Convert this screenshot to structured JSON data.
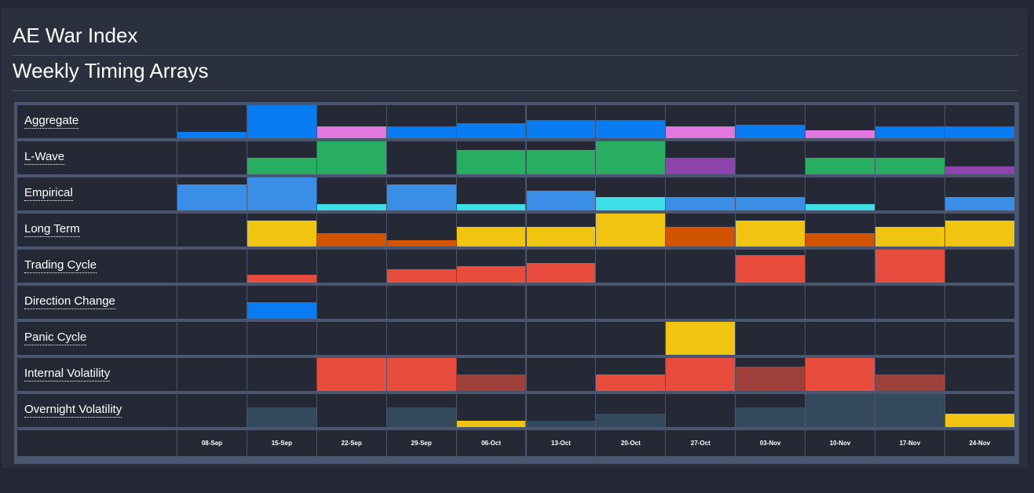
{
  "page": {
    "title": "AE War Index",
    "subtitle": "Weekly Timing Arrays"
  },
  "colors": {
    "cell_bg": "#252935",
    "border": "#4a5570",
    "panel": "#2b303e"
  },
  "chart_data": {
    "type": "heatmap",
    "categories": [
      "08-Sep",
      "15-Sep",
      "22-Sep",
      "29-Sep",
      "06-Oct",
      "13-Oct",
      "20-Oct",
      "27-Oct",
      "03-Nov",
      "10-Nov",
      "17-Nov",
      "24-Nov"
    ],
    "rows": [
      {
        "name": "Aggregate",
        "values": [
          0.2,
          1.0,
          0.35,
          0.35,
          0.45,
          0.55,
          0.55,
          0.35,
          0.4,
          0.25,
          0.35,
          0.35
        ],
        "colors": [
          "#0a7cf2",
          "#0a7cf2",
          "#e078e0",
          "#0a7cf2",
          "#0a7cf2",
          "#0a7cf2",
          "#0a7cf2",
          "#e078e0",
          "#0a7cf2",
          "#e078e0",
          "#0a7cf2",
          "#0a7cf2"
        ]
      },
      {
        "name": "L-Wave",
        "values": [
          0,
          0.5,
          1.0,
          0,
          0.75,
          0.75,
          1.0,
          0.5,
          0,
          0.5,
          0.5,
          0.25
        ],
        "colors": [
          "#27ae60",
          "#27ae60",
          "#27ae60",
          "#27ae60",
          "#27ae60",
          "#27ae60",
          "#27ae60",
          "#8e44ad",
          "#27ae60",
          "#27ae60",
          "#27ae60",
          "#8e44ad"
        ]
      },
      {
        "name": "Empirical",
        "values": [
          0.8,
          1.0,
          0.2,
          0.8,
          0.2,
          0.6,
          0.4,
          0.4,
          0.4,
          0.2,
          0,
          0.4
        ],
        "colors": [
          "#3a8ee6",
          "#3a8ee6",
          "#3ddee6",
          "#3a8ee6",
          "#3ddee6",
          "#3a8ee6",
          "#3ddee6",
          "#3a8ee6",
          "#3a8ee6",
          "#3ddee6",
          "#3a8ee6",
          "#3a8ee6"
        ]
      },
      {
        "name": "Long Term",
        "values": [
          0,
          0.8,
          0.4,
          0.2,
          0.6,
          0.6,
          1.0,
          0.6,
          0.8,
          0.4,
          0.6,
          0.8
        ],
        "colors": [
          "#f1c40f",
          "#f1c40f",
          "#d35400",
          "#d35400",
          "#f1c40f",
          "#f1c40f",
          "#f1c40f",
          "#d35400",
          "#f1c40f",
          "#d35400",
          "#f1c40f",
          "#f1c40f"
        ]
      },
      {
        "name": "Trading Cycle",
        "values": [
          0,
          0.25,
          0,
          0.4,
          0.5,
          0.6,
          0,
          0,
          0.85,
          0,
          1.0,
          0
        ],
        "colors": [
          "#e74c3c",
          "#e74c3c",
          "#e74c3c",
          "#e74c3c",
          "#e74c3c",
          "#e74c3c",
          "#e74c3c",
          "#e74c3c",
          "#e74c3c",
          "#e74c3c",
          "#e74c3c",
          "#e74c3c"
        ]
      },
      {
        "name": "Direction Change",
        "values": [
          0,
          0.5,
          0,
          0,
          0,
          0,
          0,
          0,
          0,
          0,
          0,
          0
        ],
        "colors": [
          "#0a7cf2",
          "#0a7cf2",
          "#0a7cf2",
          "#0a7cf2",
          "#0a7cf2",
          "#0a7cf2",
          "#0a7cf2",
          "#0a7cf2",
          "#0a7cf2",
          "#0a7cf2",
          "#0a7cf2",
          "#0a7cf2"
        ]
      },
      {
        "name": "Panic Cycle",
        "values": [
          0,
          0,
          0,
          0,
          0,
          0,
          0,
          1.0,
          0,
          0,
          0,
          0
        ],
        "colors": [
          "#f1c40f",
          "#f1c40f",
          "#f1c40f",
          "#f1c40f",
          "#f1c40f",
          "#f1c40f",
          "#f1c40f",
          "#f1c40f",
          "#f1c40f",
          "#f1c40f",
          "#f1c40f",
          "#f1c40f"
        ]
      },
      {
        "name": "Internal Volatility",
        "values": [
          0,
          0,
          1.0,
          1.0,
          0.5,
          0,
          0.5,
          1.0,
          0.75,
          1.0,
          0.5,
          0
        ],
        "colors": [
          "#e74c3c",
          "#e74c3c",
          "#e74c3c",
          "#e74c3c",
          "#a0403a",
          "#e74c3c",
          "#e74c3c",
          "#e74c3c",
          "#a0403a",
          "#e74c3c",
          "#a0403a",
          "#e74c3c"
        ],
        "shift": true
      },
      {
        "name": "Overnight Volatility",
        "values": [
          0,
          0.6,
          0,
          0.6,
          0.2,
          0.2,
          0.4,
          0,
          0.6,
          1.0,
          1.0,
          0.4
        ],
        "colors": [
          "#34495e",
          "#34495e",
          "#34495e",
          "#34495e",
          "#f1c40f",
          "#34495e",
          "#34495e",
          "#34495e",
          "#34495e",
          "#34495e",
          "#34495e",
          "#f1c40f"
        ]
      }
    ]
  }
}
